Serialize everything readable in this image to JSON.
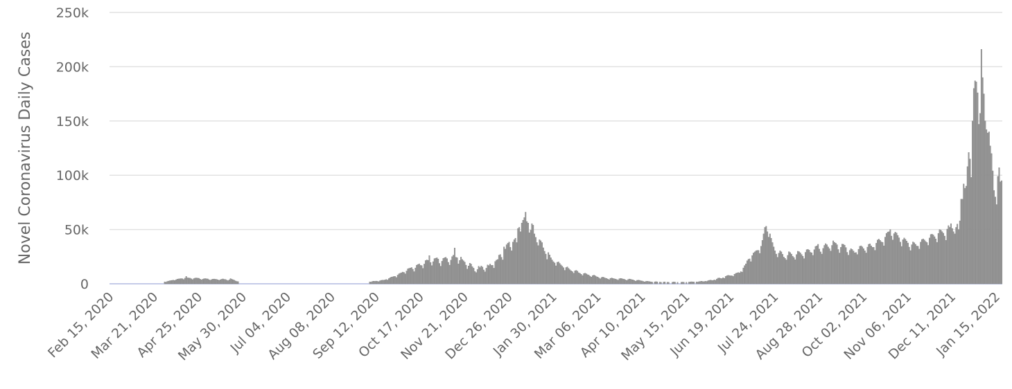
{
  "chart_data": {
    "type": "bar",
    "y_label": "Novel Coronavirus Daily Cases",
    "color": "#9a9a9a",
    "grid": true,
    "ylim": [
      0,
      250000
    ],
    "yticks": [
      0,
      {
        "value": 50000,
        "label": "50k"
      },
      {
        "value": 100000,
        "label": "100k"
      },
      {
        "value": 150000,
        "label": "150k"
      },
      {
        "value": 200000,
        "label": "200k"
      },
      {
        "value": 250000,
        "label": "250k"
      }
    ],
    "categories": [
      "Feb 15, 2020",
      null,
      null,
      null,
      null,
      null,
      null,
      null,
      null,
      null,
      null,
      null,
      null,
      null,
      null,
      null,
      null,
      null,
      null,
      null,
      null,
      null,
      null,
      null,
      null,
      null,
      null,
      null,
      null,
      null,
      null,
      null,
      null,
      null,
      null,
      "Mar 21, 2020",
      null,
      null,
      null,
      null,
      null,
      null,
      null,
      null,
      null,
      null,
      null,
      null,
      null,
      null,
      null,
      null,
      null,
      null,
      null,
      null,
      null,
      null,
      null,
      null,
      null,
      null,
      null,
      null,
      null,
      null,
      null,
      null,
      null,
      null,
      "Apr 25, 2020",
      null,
      null,
      null,
      null,
      null,
      null,
      null,
      null,
      null,
      null,
      null,
      null,
      null,
      null,
      null,
      null,
      null,
      null,
      null,
      null,
      null,
      null,
      null,
      null,
      null,
      null,
      null,
      null,
      null,
      null,
      null,
      null,
      null,
      null,
      "May 30, 2020",
      null,
      null,
      null,
      null,
      null,
      null,
      null,
      null,
      null,
      null,
      null,
      null,
      null,
      null,
      null,
      null,
      null,
      null,
      null,
      null,
      null,
      null,
      null,
      null,
      null,
      null,
      null,
      null,
      null,
      null,
      null,
      null,
      null,
      null,
      "Jul 04, 2020",
      null,
      null,
      null,
      null,
      null,
      null,
      null,
      null,
      null,
      null,
      null,
      null,
      null,
      null,
      null,
      null,
      null,
      null,
      null,
      null,
      null,
      null,
      null,
      null,
      null,
      null,
      null,
      null,
      null,
      null,
      null,
      null,
      null,
      null,
      "Aug 08, 2020",
      null,
      null,
      null,
      null,
      null,
      null,
      null,
      null,
      null,
      null,
      null,
      null,
      null,
      null,
      null,
      null,
      null,
      null,
      null,
      null,
      null,
      null,
      null,
      null,
      null,
      null,
      null,
      null,
      null,
      null,
      null,
      null,
      null,
      null,
      "Sep 12, 2020",
      null,
      null,
      null,
      null,
      null,
      null,
      null,
      null,
      null,
      null,
      null,
      null,
      null,
      null,
      null,
      null,
      null,
      null,
      null,
      null,
      null,
      null,
      null,
      null,
      null,
      null,
      null,
      null,
      null,
      null,
      null,
      null,
      null,
      null,
      "Oct 17, 2020",
      null,
      null,
      null,
      null,
      null,
      null,
      null,
      null,
      null,
      null,
      null,
      null,
      null,
      null,
      null,
      null,
      null,
      null,
      null,
      null,
      null,
      null,
      null,
      null,
      null,
      null,
      null,
      null,
      null,
      null,
      null,
      null,
      null,
      null,
      "Nov 21, 2020",
      null,
      null,
      null,
      null,
      null,
      null,
      null,
      null,
      null,
      null,
      null,
      null,
      null,
      null,
      null,
      null,
      null,
      null,
      null,
      null,
      null,
      null,
      null,
      null,
      null,
      null,
      null,
      null,
      null,
      null,
      null,
      null,
      null,
      null,
      "Dec 26, 2020",
      null,
      null,
      null,
      null,
      null,
      null,
      null,
      null,
      null,
      null,
      null,
      null,
      null,
      null,
      null,
      null,
      null,
      null,
      null,
      null,
      null,
      null,
      null,
      null,
      null,
      null,
      null,
      null,
      null,
      null,
      null,
      null,
      null,
      null,
      "Jan 30, 2021",
      null,
      null,
      null,
      null,
      null,
      null,
      null,
      null,
      null,
      null,
      null,
      null,
      null,
      null,
      null,
      null,
      null,
      null,
      null,
      null,
      null,
      null,
      null,
      null,
      null,
      null,
      null,
      null,
      null,
      null,
      null,
      null,
      null,
      null,
      "Mar 06, 2021",
      null,
      null,
      null,
      null,
      null,
      null,
      null,
      null,
      null,
      null,
      null,
      null,
      null,
      null,
      null,
      null,
      null,
      null,
      null,
      null,
      null,
      null,
      null,
      null,
      null,
      null,
      null,
      null,
      null,
      null,
      null,
      null,
      null,
      null,
      "Apr 10, 2021",
      null,
      null,
      null,
      null,
      null,
      null,
      null,
      null,
      null,
      null,
      null,
      null,
      null,
      null,
      null,
      null,
      null,
      null,
      null,
      null,
      null,
      null,
      null,
      null,
      null,
      null,
      null,
      null,
      null,
      null,
      null,
      null,
      null,
      null,
      "May 15, 2021",
      null,
      null,
      null,
      null,
      null,
      null,
      null,
      null,
      null,
      null,
      null,
      null,
      null,
      null,
      null,
      null,
      null,
      null,
      null,
      null,
      null,
      null,
      null,
      null,
      null,
      null,
      null,
      null,
      null,
      null,
      null,
      null,
      null,
      null,
      "Jun 19, 2021",
      null,
      null,
      null,
      null,
      null,
      null,
      null,
      null,
      null,
      null,
      null,
      null,
      null,
      null,
      null,
      null,
      null,
      null,
      null,
      null,
      null,
      null,
      null,
      null,
      null,
      null,
      null,
      null,
      null,
      null,
      null,
      null,
      null,
      null,
      "Jul 24, 2021",
      null,
      null,
      null,
      null,
      null,
      null,
      null,
      null,
      null,
      null,
      null,
      null,
      null,
      null,
      null,
      null,
      null,
      null,
      null,
      null,
      null,
      null,
      null,
      null,
      null,
      null,
      null,
      null,
      null,
      null,
      null,
      null,
      null,
      null,
      "Aug 28, 2021",
      null,
      null,
      null,
      null,
      null,
      null,
      null,
      null,
      null,
      null,
      null,
      null,
      null,
      null,
      null,
      null,
      null,
      null,
      null,
      null,
      null,
      null,
      null,
      null,
      null,
      null,
      null,
      null,
      null,
      null,
      null,
      null,
      null,
      null,
      "Oct 02, 2021",
      null,
      null,
      null,
      null,
      null,
      null,
      null,
      null,
      null,
      null,
      null,
      null,
      null,
      null,
      null,
      null,
      null,
      null,
      null,
      null,
      null,
      null,
      null,
      null,
      null,
      null,
      null,
      null,
      null,
      null,
      null,
      null,
      null,
      null,
      "Nov 06, 2021",
      null,
      null,
      null,
      null,
      null,
      null,
      null,
      null,
      null,
      null,
      null,
      null,
      null,
      null,
      null,
      null,
      null,
      null,
      null,
      null,
      null,
      null,
      null,
      null,
      null,
      null,
      null,
      null,
      null,
      null,
      null,
      null,
      null,
      null,
      "Dec 11, 2021",
      null,
      null,
      null,
      null,
      null,
      null,
      null,
      null,
      null,
      null,
      null,
      null,
      null,
      null,
      null,
      null,
      null,
      null,
      null,
      null,
      null,
      null,
      null,
      null,
      null,
      null,
      null,
      null,
      null,
      null,
      null,
      null,
      null,
      null,
      "Jan 15, 2022",
      null,
      null,
      null
    ],
    "values": [
      0,
      0,
      0,
      0,
      0,
      0,
      0,
      0,
      0,
      0,
      0,
      0,
      0,
      0,
      0,
      0,
      0,
      0,
      0,
      0,
      0,
      0,
      0,
      0,
      0,
      0,
      0,
      0,
      0,
      0,
      0,
      0,
      0,
      0,
      0,
      0,
      0,
      0,
      0,
      0,
      0,
      0,
      1800,
      1500,
      2200,
      2500,
      2800,
      3000,
      3200,
      3400,
      3000,
      3800,
      4300,
      4500,
      4600,
      4800,
      4700,
      4000,
      5200,
      6800,
      5500,
      5400,
      5200,
      4600,
      3900,
      4800,
      5300,
      5400,
      5200,
      5100,
      4300,
      3600,
      4200,
      4700,
      4800,
      4600,
      4500,
      3800,
      3300,
      3900,
      4300,
      4400,
      4200,
      4100,
      3700,
      3200,
      3800,
      4200,
      4500,
      4100,
      4000,
      3400,
      2900,
      3600,
      4800,
      4200,
      3800,
      3300,
      2600,
      2200,
      2000,
      0,
      0,
      0,
      0,
      0,
      0,
      0,
      0,
      0,
      0,
      0,
      0,
      0,
      0,
      0,
      0,
      0,
      0,
      0,
      0,
      0,
      0,
      0,
      0,
      0,
      0,
      0,
      0,
      0,
      0,
      0,
      0,
      0,
      0,
      0,
      0,
      0,
      0,
      0,
      0,
      0,
      0,
      0,
      0,
      0,
      0,
      0,
      0,
      0,
      0,
      0,
      0,
      0,
      0,
      0,
      0,
      0,
      0,
      0,
      0,
      0,
      0,
      0,
      0,
      0,
      0,
      0,
      0,
      0,
      0,
      0,
      0,
      0,
      0,
      0,
      0,
      0,
      0,
      0,
      0,
      0,
      0,
      0,
      0,
      0,
      0,
      0,
      0,
      0,
      0,
      0,
      0,
      0,
      0,
      0,
      0,
      0,
      0,
      0,
      0,
      0,
      0,
      0,
      1800,
      1600,
      2200,
      2400,
      2300,
      2500,
      2300,
      2000,
      2800,
      3200,
      3400,
      3300,
      3600,
      4000,
      3500,
      4800,
      5600,
      6200,
      6400,
      6800,
      6800,
      5800,
      8000,
      9200,
      9800,
      10200,
      10800,
      10500,
      9200,
      11800,
      13800,
      14200,
      14600,
      15000,
      13400,
      11200,
      14600,
      17200,
      17800,
      18400,
      17000,
      16800,
      14200,
      18200,
      21400,
      22000,
      21600,
      26000,
      19600,
      16800,
      20400,
      23200,
      23600,
      24000,
      22800,
      18800,
      16200,
      20800,
      23400,
      24000,
      24400,
      23200,
      19800,
      17200,
      21800,
      25000,
      26400,
      33000,
      24400,
      24000,
      18400,
      21600,
      24600,
      22400,
      21200,
      20000,
      17200,
      13600,
      16400,
      19000,
      18200,
      15800,
      14400,
      11400,
      10400,
      13200,
      16200,
      15000,
      16400,
      15400,
      12800,
      11000,
      14400,
      17400,
      16800,
      18200,
      17000,
      17000,
      14400,
      20600,
      21800,
      22400,
      26400,
      27000,
      24400,
      22000,
      34000,
      32000,
      36000,
      37400,
      38400,
      33600,
      30400,
      38400,
      40600,
      42000,
      38000,
      51000,
      52000,
      48000,
      56000,
      58600,
      61000,
      66000,
      57400,
      56000,
      47000,
      49400,
      55400,
      54000,
      46000,
      42800,
      38000,
      35200,
      40600,
      39600,
      38000,
      33200,
      30000,
      27400,
      22400,
      28800,
      26600,
      24000,
      22000,
      20400,
      19200,
      16600,
      19800,
      20200,
      18800,
      17400,
      16200,
      14800,
      12400,
      15000,
      15600,
      14200,
      13000,
      12000,
      11200,
      9800,
      12000,
      12400,
      11600,
      10200,
      9600,
      8800,
      7600,
      9400,
      9800,
      9200,
      8400,
      8000,
      7000,
      6200,
      7600,
      8000,
      7400,
      6600,
      6200,
      5400,
      4600,
      5800,
      6200,
      5800,
      5200,
      5000,
      4400,
      3800,
      5000,
      5400,
      5000,
      4600,
      4400,
      4000,
      3400,
      4600,
      5000,
      4800,
      4400,
      4200,
      3600,
      3000,
      4000,
      4400,
      4200,
      3800,
      3600,
      3000,
      2400,
      3200,
      3400,
      3200,
      2800,
      2600,
      2200,
      1800,
      2200,
      2400,
      2200,
      2000,
      1800,
      1600,
      0,
      1800,
      2000,
      1800,
      0,
      1600,
      1400,
      0,
      1600,
      1800,
      0,
      1500,
      1400,
      0,
      0,
      1500,
      1700,
      1600,
      0,
      1400,
      0,
      0,
      1500,
      1600,
      1500,
      0,
      1400,
      0,
      1600,
      1700,
      1900,
      1800,
      1700,
      0,
      1800,
      1600,
      2000,
      2200,
      2400,
      2100,
      2000,
      2400,
      2200,
      2800,
      3200,
      3400,
      3200,
      3000,
      3600,
      3200,
      4400,
      5200,
      5400,
      5000,
      4800,
      5600,
      5000,
      6800,
      7400,
      7800,
      7600,
      7400,
      7400,
      6800,
      8800,
      9600,
      10000,
      10400,
      10000,
      11200,
      10800,
      14600,
      16800,
      18400,
      21200,
      22600,
      23000,
      20400,
      26000,
      28400,
      29400,
      30400,
      30800,
      30800,
      28000,
      34600,
      40000,
      46000,
      52000,
      53000,
      48000,
      43000,
      46000,
      42000,
      38000,
      34000,
      30400,
      27400,
      24400,
      28200,
      30400,
      29400,
      27200,
      24600,
      23400,
      22000,
      26200,
      29600,
      28800,
      27400,
      25400,
      24200,
      22200,
      27000,
      30000,
      29600,
      28600,
      27000,
      25400,
      23200,
      29000,
      31400,
      31800,
      31000,
      29000,
      28600,
      26200,
      31400,
      34400,
      35000,
      36400,
      32000,
      29400,
      27400,
      32600,
      35400,
      37000,
      36000,
      34000,
      32400,
      30200,
      35400,
      39600,
      38200,
      37400,
      36000,
      31600,
      28400,
      33600,
      36600,
      36400,
      35600,
      33400,
      29000,
      26400,
      30800,
      32400,
      31600,
      30200,
      28600,
      28800,
      27000,
      31800,
      34600,
      35000,
      34000,
      32400,
      30400,
      28400,
      33800,
      36400,
      36800,
      35000,
      33600,
      33600,
      30800,
      37400,
      40400,
      41200,
      40000,
      38600,
      38200,
      35000,
      43000,
      46400,
      47600,
      48000,
      50000,
      44000,
      40400,
      46200,
      47600,
      46800,
      44600,
      42400,
      38400,
      34400,
      40600,
      42200,
      41000,
      39400,
      37600,
      33800,
      30600,
      36000,
      38600,
      37800,
      36400,
      34800,
      34600,
      32000,
      38400,
      40800,
      41400,
      40400,
      39000,
      38000,
      35400,
      42200,
      45400,
      45800,
      45000,
      43400,
      41400,
      38200,
      46400,
      50000,
      49400,
      48000,
      46600,
      44000,
      40000,
      50400,
      53600,
      52000,
      55400,
      51000,
      48000,
      46000,
      52000,
      55000,
      50000,
      58000,
      78000,
      78000,
      92000,
      88000,
      90000,
      108000,
      121000,
      115000,
      98000,
      150000,
      180000,
      187000,
      186000,
      176000,
      147000,
      157000,
      216000,
      190000,
      175000,
      150000,
      142000,
      139000,
      140000,
      127000,
      120000,
      104000,
      86000,
      80000,
      73000,
      99000,
      107000,
      94000,
      95000
    ]
  }
}
